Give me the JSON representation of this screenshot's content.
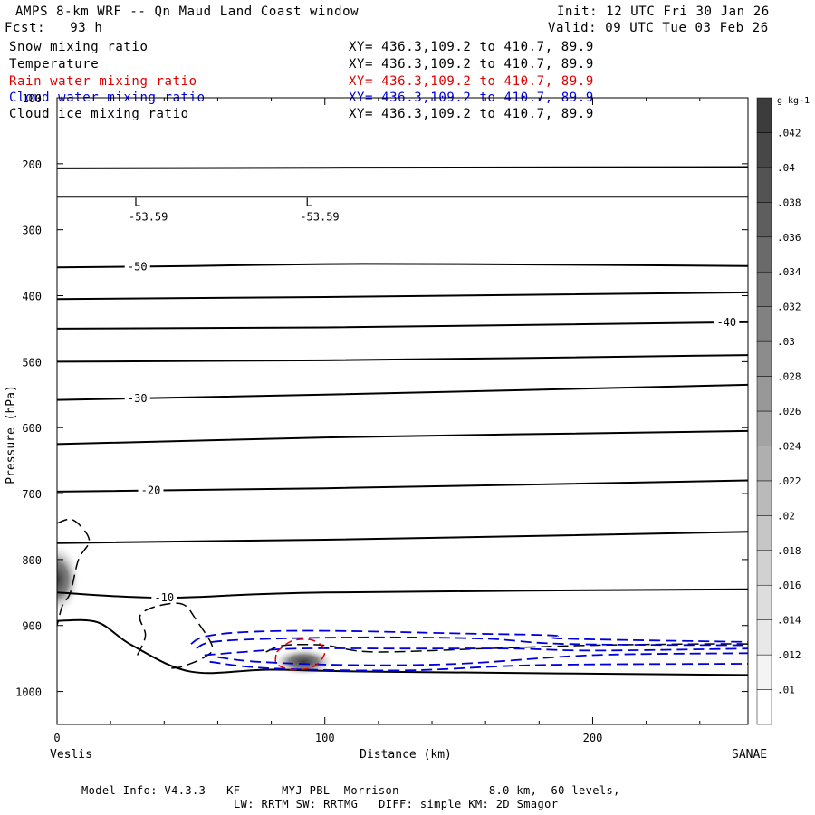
{
  "header": {
    "title": "AMPS 8-km WRF -- Qn Maud Land Coast window",
    "fcst": "Fcst:   93 h",
    "init": "Init: 12 UTC Fri 30 Jan 26",
    "valid": "Valid: 09 UTC Tue 03 Feb 26"
  },
  "legend": [
    {
      "label": "Snow mixing ratio",
      "coords": "XY= 436.3,109.2 to 410.7, 89.9",
      "color": "#000000"
    },
    {
      "label": "Temperature",
      "coords": "XY= 436.3,109.2 to 410.7, 89.9",
      "color": "#000000"
    },
    {
      "label": "Rain water mixing ratio",
      "coords": "XY= 436.3,109.2 to 410.7, 89.9",
      "color": "#e00000"
    },
    {
      "label": "Cloud water mixing ratio",
      "coords": "XY= 436.3,109.2 to 410.7, 89.9",
      "color": "#0000dd"
    },
    {
      "label": "Cloud ice mixing ratio",
      "coords": "XY= 436.3,109.2 to 410.7, 89.9",
      "color": "#000000"
    }
  ],
  "footer": {
    "line1": "Model Info: V4.3.3   KF      MYJ PBL  Morrison             8.0 km,  60 levels,",
    "line2": "LW: RRTM SW: RRTMG   DIFF: simple KM: 2D Smagor"
  },
  "chart_data": {
    "type": "contour",
    "xlabel": "Distance (km)",
    "ylabel": "Pressure (hPa)",
    "xlim": [
      0,
      258
    ],
    "ylim": [
      1050,
      100
    ],
    "x_ticks": [
      0,
      100,
      200
    ],
    "y_ticks": [
      100,
      200,
      300,
      400,
      500,
      600,
      700,
      800,
      900,
      1000
    ],
    "x_end_labels": {
      "left": "Veslis",
      "right": "SANAE"
    },
    "lows": [
      {
        "label": "L",
        "value": "-53.59",
        "x": 30,
        "p": 275
      },
      {
        "label": "L",
        "value": "-53.59",
        "x": 94,
        "p": 275
      }
    ],
    "temperature_isotherms": [
      {
        "points": [
          [
            0,
            207
          ],
          [
            100,
            206
          ],
          [
            258,
            205
          ]
        ]
      },
      {
        "points": [
          [
            0,
            250
          ],
          [
            258,
            250
          ]
        ]
      },
      {
        "points": [
          [
            0,
            357
          ],
          [
            50,
            355
          ],
          [
            100,
            352
          ],
          [
            150,
            352
          ],
          [
            258,
            355
          ]
        ],
        "label": "-50",
        "label_x": 30
      },
      {
        "points": [
          [
            0,
            405
          ],
          [
            100,
            402
          ],
          [
            258,
            395
          ]
        ]
      },
      {
        "points": [
          [
            0,
            450
          ],
          [
            100,
            448
          ],
          [
            258,
            440
          ]
        ],
        "label": "-40",
        "label_x": 250
      },
      {
        "points": [
          [
            0,
            500
          ],
          [
            100,
            498
          ],
          [
            258,
            490
          ]
        ]
      },
      {
        "points": [
          [
            0,
            558
          ],
          [
            100,
            550
          ],
          [
            258,
            535
          ]
        ],
        "label": "-30",
        "label_x": 30
      },
      {
        "points": [
          [
            0,
            625
          ],
          [
            100,
            615
          ],
          [
            258,
            605
          ]
        ]
      },
      {
        "points": [
          [
            0,
            697
          ],
          [
            100,
            692
          ],
          [
            258,
            680
          ]
        ],
        "label": "-20",
        "label_x": 35
      },
      {
        "points": [
          [
            0,
            775
          ],
          [
            100,
            770
          ],
          [
            258,
            758
          ]
        ]
      },
      {
        "points": [
          [
            0,
            850
          ],
          [
            40,
            858
          ],
          [
            100,
            850
          ],
          [
            258,
            845
          ]
        ],
        "label": "-10",
        "label_x": 40
      },
      {
        "points": [
          [
            0,
            893
          ],
          [
            15,
            895
          ],
          [
            28,
            930
          ],
          [
            50,
            970
          ],
          [
            80,
            967
          ],
          [
            120,
            970
          ],
          [
            258,
            975
          ]
        ]
      }
    ],
    "ground": [
      [
        0,
        893
      ],
      [
        15,
        895
      ],
      [
        28,
        930
      ],
      [
        50,
        970
      ],
      [
        80,
        967
      ],
      [
        120,
        970
      ],
      [
        258,
        975
      ]
    ],
    "snow_shading": [
      {
        "x": 0,
        "p": 830,
        "max": 0.018,
        "rx": 9,
        "rp": 55
      },
      {
        "x": 92,
        "p": 955,
        "max": 0.04,
        "rx": 12,
        "rp": 22
      }
    ],
    "cloud_ice_contours": [
      [
        [
          0,
          745
        ],
        [
          6,
          740
        ],
        [
          12,
          770
        ],
        [
          8,
          800
        ],
        [
          5,
          850
        ],
        [
          2,
          870
        ],
        [
          0,
          900
        ]
      ],
      [
        [
          30,
          945
        ],
        [
          33,
          915
        ],
        [
          31,
          885
        ],
        [
          38,
          870
        ],
        [
          47,
          868
        ],
        [
          52,
          892
        ],
        [
          58,
          932
        ],
        [
          55,
          948
        ],
        [
          47,
          962
        ],
        [
          42,
          965
        ]
      ],
      [
        [
          78,
          940
        ],
        [
          85,
          930
        ],
        [
          100,
          930
        ],
        [
          118,
          940
        ],
        [
          160,
          935
        ],
        [
          200,
          930
        ],
        [
          240,
          928
        ],
        [
          258,
          928
        ]
      ]
    ],
    "cloud_water_contours": [
      [
        [
          50,
          928
        ],
        [
          55,
          917
        ],
        [
          70,
          910
        ],
        [
          100,
          908
        ],
        [
          150,
          912
        ],
        [
          185,
          915
        ],
        [
          190,
          920
        ],
        [
          258,
          925
        ]
      ],
      [
        [
          52,
          935
        ],
        [
          58,
          925
        ],
        [
          80,
          920
        ],
        [
          120,
          918
        ],
        [
          160,
          920
        ],
        [
          190,
          928
        ],
        [
          258,
          930
        ]
      ],
      [
        [
          55,
          945
        ],
        [
          70,
          940
        ],
        [
          90,
          935
        ],
        [
          130,
          935
        ],
        [
          170,
          935
        ],
        [
          200,
          938
        ],
        [
          258,
          935
        ]
      ],
      [
        [
          60,
          948
        ],
        [
          75,
          955
        ],
        [
          110,
          960
        ],
        [
          150,
          958
        ],
        [
          200,
          945
        ],
        [
          258,
          942
        ]
      ],
      [
        [
          57,
          955
        ],
        [
          80,
          965
        ],
        [
          130,
          968
        ],
        [
          180,
          960
        ],
        [
          258,
          958
        ]
      ]
    ],
    "rain_water_contours": [
      [
        [
          82,
          940
        ],
        [
          88,
          923
        ],
        [
          96,
          923
        ],
        [
          100,
          940
        ],
        [
          96,
          962
        ],
        [
          88,
          967
        ],
        [
          82,
          958
        ],
        [
          82,
          940
        ]
      ]
    ],
    "colorbar": {
      "unit": "g kg-1",
      "levels": [
        0.01,
        0.012,
        0.014,
        0.016,
        0.018,
        0.02,
        0.022,
        0.024,
        0.026,
        0.028,
        0.03,
        0.032,
        0.034,
        0.036,
        0.038,
        0.04,
        0.042
      ],
      "tick_labels": [
        ".01",
        ".012",
        ".014",
        ".016",
        ".018",
        ".02",
        ".022",
        ".024",
        ".026",
        ".028",
        ".03",
        ".032",
        ".034",
        ".036",
        ".038",
        ".04",
        ".042"
      ]
    }
  }
}
